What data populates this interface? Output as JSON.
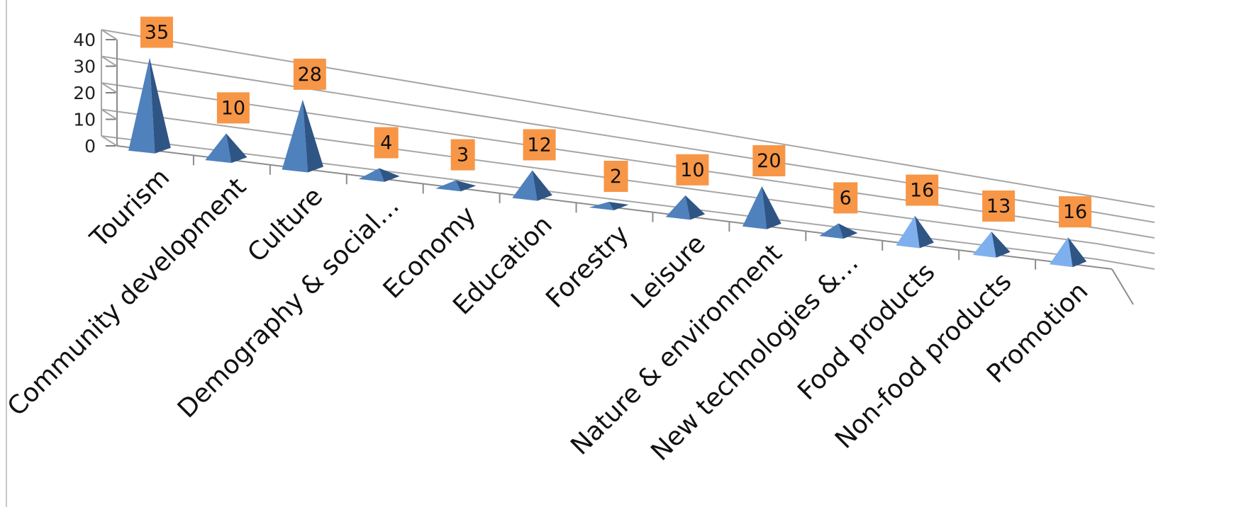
{
  "chart_data": {
    "type": "bar",
    "style": "3d-pyramid",
    "categories": [
      "Tourism",
      "Community development",
      "Culture",
      "Demography & social…",
      "Economy",
      "Education",
      "Forestry",
      "Leisure",
      "Nature & environment",
      "New technologies &…",
      "Food products",
      "Non-food products",
      "Promotion"
    ],
    "values": [
      35,
      10,
      28,
      4,
      3,
      12,
      2,
      10,
      20,
      6,
      16,
      13,
      16
    ],
    "ylim": [
      0,
      40
    ],
    "yticks": [
      0,
      10,
      20,
      30,
      40
    ],
    "grid": true,
    "data_labels": true,
    "colors": {
      "bar": "#4f81bd",
      "bar_light": "#7fb0ee",
      "bar_dark": "#2f5584",
      "label_bg": "#f79646",
      "grid": "#a6a6a6"
    }
  }
}
